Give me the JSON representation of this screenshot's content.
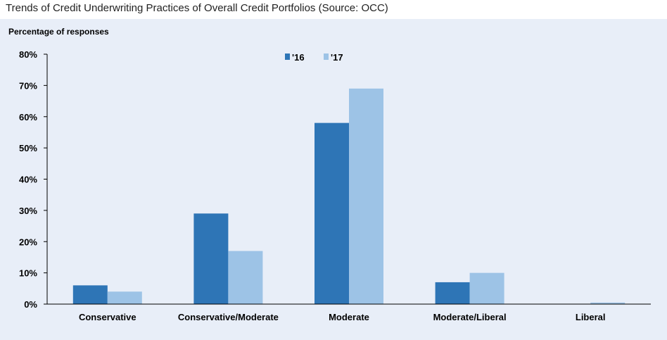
{
  "caption": "Trends of Credit Underwriting Practices of Overall Credit Portfolios (Source: OCC)",
  "chart_data": {
    "type": "bar",
    "title": "",
    "ylabel": "Percentage of responses",
    "xlabel": "",
    "categories": [
      "Conservative",
      "Conservative/Moderate",
      "Moderate",
      "Moderate/Liberal",
      "Liberal"
    ],
    "series": [
      {
        "name": "'16",
        "values": [
          6,
          29,
          58,
          7,
          0
        ],
        "color": "#2e75b6"
      },
      {
        "name": "'17",
        "values": [
          4,
          17,
          69,
          10,
          0.5
        ],
        "color": "#9dc3e6"
      }
    ],
    "ylim": [
      0,
      80
    ],
    "yticks": [
      "0%",
      "10%",
      "20%",
      "30%",
      "40%",
      "50%",
      "60%",
      "70%",
      "80%"
    ],
    "grid": false,
    "legend_position": "top-center",
    "background": "#e8eef8"
  }
}
